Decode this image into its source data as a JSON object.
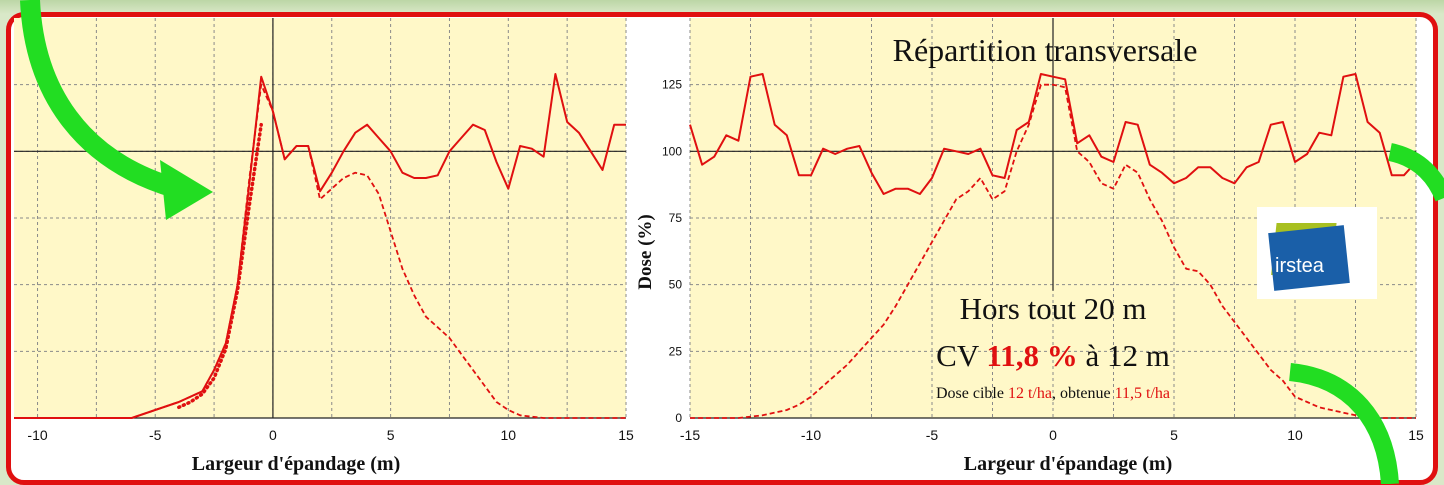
{
  "chart_data": [
    {
      "type": "line",
      "xlabel": "Largeur d'épandage (m)",
      "xlim": [
        -11,
        15
      ],
      "ylim": [
        0,
        150
      ],
      "xticks": [
        "-10",
        "-5",
        "0",
        "5",
        "10",
        "15"
      ],
      "grid": true,
      "series": [
        {
          "style": "solid",
          "x": [
            -11,
            -6,
            -5,
            -4,
            -3,
            -2.5,
            -2,
            -1.5,
            -1,
            -0.5,
            0,
            0.5,
            1,
            1.5,
            2,
            2.5,
            3,
            3.5,
            4,
            4.5,
            5,
            5.5,
            6,
            6.5,
            7,
            7.5,
            8,
            8.5,
            9,
            9.5,
            10,
            10.5,
            11,
            11.5,
            12,
            12.5,
            13,
            13.5,
            14,
            14.5,
            15
          ],
          "y": [
            0,
            0,
            3,
            6,
            10,
            18,
            28,
            50,
            88,
            128,
            115,
            97,
            102,
            102,
            85,
            92,
            100,
            107,
            110,
            105,
            100,
            92,
            90,
            90,
            91,
            100,
            105,
            110,
            108,
            96,
            86,
            102,
            101,
            98,
            129,
            111,
            107,
            100,
            93,
            110,
            110
          ]
        },
        {
          "style": "dash",
          "x": [
            -11,
            -6,
            -5,
            -4,
            -3,
            -2.5,
            -2,
            -1.5,
            -1,
            -0.5,
            0,
            0.5,
            1,
            1.5,
            2,
            2.5,
            3,
            3.5,
            4,
            4.5,
            5,
            5.5,
            6,
            6.5,
            7,
            7.5,
            8,
            8.5,
            9,
            9.5,
            10,
            10.5,
            11,
            11.5,
            12,
            12.5,
            13,
            14,
            15
          ],
          "y": [
            0,
            0,
            3,
            6,
            10,
            18,
            28,
            50,
            90,
            125,
            115,
            97,
            102,
            102,
            82,
            86,
            90,
            92,
            91,
            84,
            70,
            56,
            46,
            38,
            34,
            30,
            24,
            18,
            12,
            6,
            3,
            1,
            0.5,
            0,
            0,
            0,
            0,
            0,
            0
          ]
        },
        {
          "style": "dot",
          "x": [
            -4,
            -3.5,
            -3,
            -2.5,
            -2,
            -1.5,
            -1,
            -0.5
          ],
          "y": [
            4,
            6,
            9,
            15,
            26,
            48,
            80,
            110
          ]
        }
      ]
    },
    {
      "type": "line",
      "title": "Répartition transversale",
      "xlabel": "Largeur d'épandage (m)",
      "ylabel": "Dose (%)",
      "xlim": [
        -15,
        15
      ],
      "ylim": [
        0,
        150
      ],
      "xticks": [
        "-15",
        "-10",
        "-5",
        "0",
        "5",
        "10",
        "15"
      ],
      "yticks": [
        "0",
        "25",
        "50",
        "75",
        "100",
        "125"
      ],
      "grid": true,
      "series": [
        {
          "style": "solid",
          "x": [
            -15,
            -14.5,
            -14,
            -13.5,
            -13,
            -12.5,
            -12,
            -11.5,
            -11,
            -10.5,
            -10,
            -9.5,
            -9,
            -8.5,
            -8,
            -7.5,
            -7,
            -6.5,
            -6,
            -5.5,
            -5,
            -4.5,
            -4,
            -3.5,
            -3,
            -2.5,
            -2,
            -1.5,
            -1,
            -0.5,
            0,
            0.5,
            1,
            1.5,
            2,
            2.5,
            3,
            3.5,
            4,
            4.5,
            5,
            5.5,
            6,
            6.5,
            7,
            7.5,
            8,
            8.5,
            9,
            9.5,
            10,
            10.5,
            11,
            11.5,
            12,
            12.5,
            13,
            13.5,
            14,
            14.5,
            15
          ],
          "y": [
            110,
            95,
            98,
            106,
            104,
            128,
            129,
            110,
            106,
            91,
            91,
            101,
            99,
            101,
            102,
            92,
            84,
            86,
            86,
            84,
            90,
            101,
            100,
            99,
            101,
            91,
            90,
            108,
            111,
            129,
            128,
            127,
            103,
            106,
            98,
            96,
            111,
            110,
            95,
            92,
            88,
            90,
            94,
            94,
            90,
            88,
            94,
            96,
            110,
            111,
            96,
            99,
            107,
            106,
            128,
            129,
            111,
            107,
            91,
            91,
            96
          ]
        },
        {
          "style": "dash",
          "x": [
            -15,
            -14,
            -13,
            -12,
            -11,
            -10.5,
            -10,
            -9.5,
            -9,
            -8.5,
            -8,
            -7.5,
            -7,
            -6.5,
            -6,
            -5.5,
            -5,
            -4.5,
            -4,
            -3.5,
            -3,
            -2.5,
            -2,
            -1.5,
            -1,
            -0.5,
            0,
            0.5,
            1,
            1.5,
            2,
            2.5,
            3,
            3.5,
            4,
            4.5,
            5,
            5.5,
            6,
            6.5,
            7,
            7.5,
            8,
            8.5,
            9,
            9.5,
            10,
            10.5,
            11,
            11.5,
            12,
            12.5,
            13,
            14,
            15
          ],
          "y": [
            0,
            0,
            0,
            1,
            3,
            5,
            8,
            12,
            16,
            20,
            25,
            30,
            35,
            42,
            50,
            58,
            66,
            74,
            82,
            85,
            90,
            82,
            85,
            100,
            110,
            125,
            125,
            124,
            100,
            96,
            88,
            86,
            95,
            92,
            82,
            74,
            64,
            56,
            55,
            50,
            42,
            36,
            30,
            24,
            18,
            14,
            8,
            6,
            4,
            3,
            2,
            1,
            0,
            0,
            0
          ]
        }
      ]
    }
  ],
  "annotations": {
    "line1": "Hors tout 20 m",
    "line2_prefix": "CV ",
    "line2_value": "11,8 %",
    "line2_suffix": " à 12 m",
    "line3_a": "Dose cible ",
    "line3_b": "12 t/ha",
    "line3_c": ", obtenue ",
    "line3_d": "11,5 t/ha"
  },
  "logo": {
    "text": "irstea"
  },
  "colors": {
    "curve": "#e01010",
    "plot_bg": "#fff8c8",
    "frame": "#e01010",
    "arrow": "#22dd22"
  },
  "icons": {
    "left_arrow": "curved-arrow-icon",
    "right_arrow_top": "curved-arrow-icon",
    "right_arrow_bottom": "curved-arrow-icon"
  }
}
